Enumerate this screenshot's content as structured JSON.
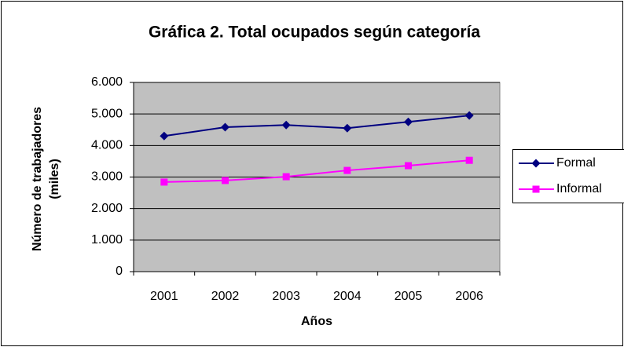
{
  "chart_data": {
    "type": "line",
    "title": "Gráfica 2. Total ocupados según categoría",
    "x_label": "Años",
    "y_label": [
      "Número de trabajadores",
      "(miles)"
    ],
    "categories": [
      "2001",
      "2002",
      "2003",
      "2004",
      "2005",
      "2006"
    ],
    "series": [
      {
        "name": "Formal",
        "color": "#000080",
        "marker": "diamond",
        "values": [
          4300,
          4580,
          4650,
          4550,
          4750,
          4950
        ]
      },
      {
        "name": "Informal",
        "color": "#ff00ff",
        "marker": "square",
        "values": [
          2840,
          2890,
          3010,
          3210,
          3360,
          3530
        ]
      }
    ],
    "ylim": [
      0,
      6000
    ],
    "yticks": [
      0,
      {
        "value": 1000,
        "label": "1.000"
      },
      {
        "value": 2000,
        "label": "2.000"
      },
      {
        "value": 3000,
        "label": "3.000"
      },
      {
        "value": 4000,
        "label": "4.000"
      },
      {
        "value": 5000,
        "label": "5.000"
      },
      {
        "value": 6000,
        "label": "6.000"
      }
    ],
    "grid": true,
    "plot_background": "#c0c0c0",
    "legend": "right"
  }
}
